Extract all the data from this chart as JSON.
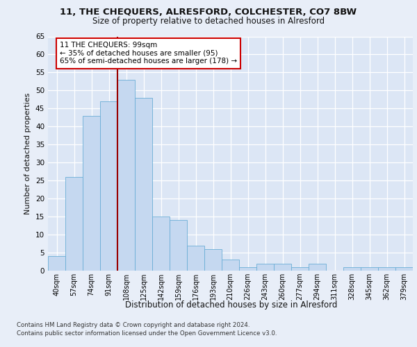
{
  "title1": "11, THE CHEQUERS, ALRESFORD, COLCHESTER, CO7 8BW",
  "title2": "Size of property relative to detached houses in Alresford",
  "xlabel": "Distribution of detached houses by size in Alresford",
  "ylabel": "Number of detached properties",
  "bar_labels": [
    "40sqm",
    "57sqm",
    "74sqm",
    "91sqm",
    "108sqm",
    "125sqm",
    "142sqm",
    "159sqm",
    "176sqm",
    "193sqm",
    "210sqm",
    "226sqm",
    "243sqm",
    "260sqm",
    "277sqm",
    "294sqm",
    "311sqm",
    "328sqm",
    "345sqm",
    "362sqm",
    "379sqm"
  ],
  "bar_values": [
    4,
    26,
    43,
    47,
    53,
    48,
    15,
    14,
    7,
    6,
    3,
    1,
    2,
    2,
    1,
    2,
    0,
    1,
    1,
    1,
    1
  ],
  "bar_color": "#c5d8f0",
  "bar_edge_color": "#6aaed6",
  "vline_x": 3.5,
  "vline_color": "#990000",
  "annotation_text": "11 THE CHEQUERS: 99sqm\n← 35% of detached houses are smaller (95)\n65% of semi-detached houses are larger (178) →",
  "annotation_box_color": "#ffffff",
  "annotation_box_edge": "#cc0000",
  "ylim": [
    0,
    65
  ],
  "yticks": [
    0,
    5,
    10,
    15,
    20,
    25,
    30,
    35,
    40,
    45,
    50,
    55,
    60,
    65
  ],
  "footer1": "Contains HM Land Registry data © Crown copyright and database right 2024.",
  "footer2": "Contains public sector information licensed under the Open Government Licence v3.0.",
  "bg_color": "#e8eef8",
  "plot_bg_color": "#dce6f5"
}
